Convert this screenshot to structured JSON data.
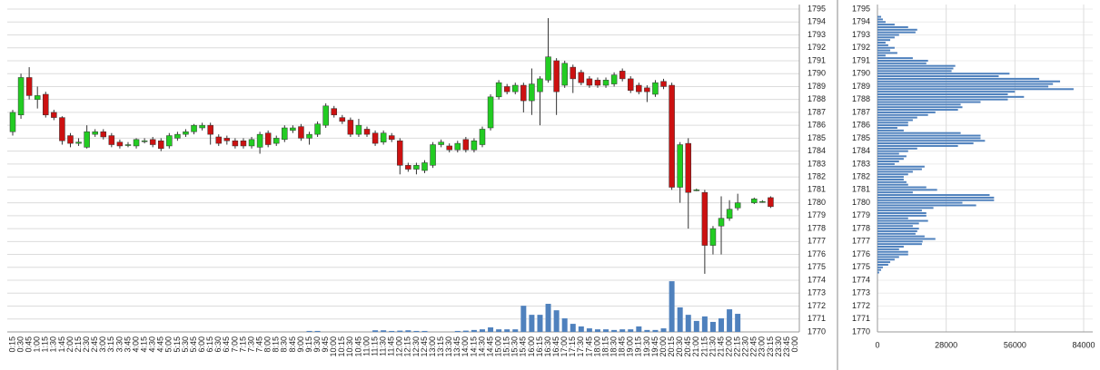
{
  "chart_data": [
    {
      "type": "candlestick",
      "categories": [
        "0:15",
        "0:30",
        "0:45",
        "1:00",
        "1:15",
        "1:30",
        "1:45",
        "2:00",
        "2:15",
        "2:30",
        "2:45",
        "3:00",
        "3:15",
        "3:30",
        "3:45",
        "4:00",
        "4:15",
        "4:30",
        "4:45",
        "5:00",
        "5:15",
        "5:30",
        "5:45",
        "6:00",
        "6:15",
        "6:30",
        "6:45",
        "7:00",
        "7:15",
        "7:30",
        "7:45",
        "8:00",
        "8:15",
        "8:30",
        "8:45",
        "9:00",
        "9:15",
        "9:30",
        "9:45",
        "10:00",
        "10:15",
        "10:30",
        "10:45",
        "11:00",
        "11:15",
        "11:30",
        "11:45",
        "12:00",
        "12:15",
        "12:30",
        "12:45",
        "13:00",
        "13:15",
        "13:30",
        "13:45",
        "14:00",
        "14:15",
        "14:30",
        "14:45",
        "15:00",
        "15:15",
        "15:30",
        "15:45",
        "16:00",
        "16:15",
        "16:30",
        "16:45",
        "17:00",
        "17:15",
        "17:30",
        "17:45",
        "18:00",
        "18:15",
        "18:30",
        "18:45",
        "19:00",
        "19:15",
        "19:30",
        "19:45",
        "20:00",
        "20:15",
        "20:30",
        "20:45",
        "21:00",
        "21:15",
        "21:30",
        "21:45",
        "22:00",
        "22:15",
        "22:30",
        "22:45",
        "23:00",
        "23:15",
        "23:30",
        "23:45",
        "0:00"
      ],
      "open": [
        1785.5,
        1786.8,
        1789.7,
        1788,
        1788.4,
        1787,
        1786.6,
        1785.2,
        1784.6,
        1784.3,
        1785.3,
        1785.5,
        1785.2,
        1784.7,
        1784.5,
        1784.4,
        1784.8,
        1784.9,
        1784.8,
        1784.4,
        1785,
        1785.3,
        1785.5,
        1785.8,
        1786,
        1785.1,
        1785,
        1784.8,
        1784.8,
        1784.4,
        1784.3,
        1785.4,
        1784.6,
        1784.9,
        1785.6,
        1785.9,
        1785,
        1785.3,
        1786,
        1787.3,
        1786.6,
        1786.4,
        1785.3,
        1785.7,
        1785.4,
        1784.7,
        1785.2,
        1784.8,
        1782.9,
        1782.6,
        1782.5,
        1782.9,
        1784.5,
        1784.4,
        1784.1,
        1784.9,
        1784.1,
        1784.5,
        1785.8,
        1788.2,
        1789,
        1788.6,
        1789.1,
        1787.9,
        1788.6,
        1789.5,
        1791,
        1789.1,
        1790.5,
        1790.1,
        1789.6,
        1789.5,
        1789.1,
        1789.2,
        1790.2,
        1789.6,
        1789.1,
        1788.9,
        1788.4,
        1789.4,
        1789.1,
        1781.2,
        1784.6,
        1781,
        1780.8,
        1776.7,
        1778.2,
        1778.8,
        1779.6,
        null,
        1780,
        1780.1,
        1780.4,
        null,
        null,
        null
      ],
      "high": [
        1787.2,
        1790,
        1790.5,
        1789,
        1788.6,
        1787.2,
        1786.7,
        1785.4,
        1785,
        1786,
        1785.7,
        1785.7,
        1785.4,
        1784.9,
        1784.7,
        1785,
        1785,
        1785.1,
        1785,
        1785.4,
        1785.5,
        1785.7,
        1786.1,
        1786.2,
        1786.2,
        1785.3,
        1785.2,
        1785,
        1785,
        1785.1,
        1785.5,
        1785.6,
        1785.2,
        1786,
        1786,
        1786.1,
        1785.5,
        1786.3,
        1787.7,
        1787.5,
        1786.8,
        1786.6,
        1786.5,
        1785.9,
        1785.6,
        1785.6,
        1785.4,
        1785,
        1783.1,
        1783.1,
        1783.3,
        1784.7,
        1784.9,
        1784.6,
        1784.8,
        1785.1,
        1785,
        1785.9,
        1788.4,
        1789.5,
        1789.2,
        1789.3,
        1789.3,
        1790.4,
        1789.8,
        1794.3,
        1791.2,
        1791,
        1790.7,
        1790.3,
        1789.8,
        1789.7,
        1789.7,
        1790.1,
        1790.4,
        1789.8,
        1789.3,
        1789.1,
        1789.5,
        1789.6,
        1789.3,
        1784.7,
        1785,
        1781.1,
        1781,
        1778.2,
        1780.5,
        1780.2,
        1780.7,
        null,
        1780.4,
        1780.2,
        1780.5,
        null,
        null,
        null
      ],
      "low": [
        1785.2,
        1786.5,
        1788,
        1787.3,
        1786.6,
        1786.4,
        1784.5,
        1784.3,
        1784.4,
        1784.2,
        1785.1,
        1784.9,
        1784.3,
        1784.2,
        1784.3,
        1784.2,
        1784.6,
        1784.3,
        1784,
        1784.2,
        1784.8,
        1785.1,
        1785.3,
        1785.6,
        1784.5,
        1784.4,
        1784.5,
        1784.2,
        1784.2,
        1784.2,
        1783.8,
        1784.3,
        1784.4,
        1784.7,
        1785.4,
        1784.8,
        1784.5,
        1785.1,
        1785.8,
        1786.6,
        1786.1,
        1785.1,
        1785.1,
        1785.1,
        1784.4,
        1784.5,
        1784.7,
        1782.2,
        1782.4,
        1782.2,
        1782.3,
        1782.7,
        1784.3,
        1783.9,
        1783.9,
        1783.9,
        1783.9,
        1784.3,
        1785.6,
        1788,
        1788.4,
        1788.4,
        1787,
        1786.8,
        1786,
        1789.3,
        1786.8,
        1788.9,
        1788.5,
        1789.1,
        1788.9,
        1788.9,
        1788.9,
        1789,
        1789.4,
        1788.5,
        1788.4,
        1787.8,
        1788.2,
        1788.8,
        1781,
        1780,
        1778,
        1780.9,
        1774.5,
        1776,
        1776,
        1778.6,
        1779.4,
        null,
        1779.9,
        1780,
        1779.6,
        null,
        null,
        null
      ],
      "close": [
        1787,
        1789.7,
        1788.3,
        1788.3,
        1786.8,
        1786.6,
        1784.8,
        1784.6,
        1784.7,
        1785.5,
        1785.5,
        1785.1,
        1784.5,
        1784.4,
        1784.5,
        1784.9,
        1784.8,
        1784.5,
        1784.2,
        1785.2,
        1785.3,
        1785.5,
        1786,
        1786,
        1785.3,
        1784.6,
        1784.8,
        1784.4,
        1784.4,
        1784.9,
        1785.3,
        1784.5,
        1785,
        1785.8,
        1785.8,
        1785,
        1785.3,
        1786.1,
        1787.5,
        1786.8,
        1786.3,
        1785.3,
        1786,
        1785.3,
        1784.6,
        1785.4,
        1784.9,
        1782.9,
        1782.6,
        1782.9,
        1783.1,
        1784.5,
        1784.7,
        1784.1,
        1784.6,
        1784.1,
        1784.8,
        1785.7,
        1788.2,
        1789.3,
        1788.6,
        1789.1,
        1787.9,
        1789.2,
        1789.6,
        1791.3,
        1788.6,
        1790.8,
        1789.6,
        1789.3,
        1789.1,
        1789.1,
        1789.5,
        1789.9,
        1789.6,
        1788.7,
        1788.6,
        1788.6,
        1789.3,
        1789,
        1781.2,
        1784.5,
        1780.8,
        1781,
        1776.7,
        1778,
        1778.8,
        1779.5,
        1780,
        null,
        1780.3,
        1780.1,
        1779.7,
        null,
        null,
        null
      ],
      "volume": [
        0,
        0,
        0,
        0,
        0,
        0,
        0,
        0,
        0,
        0,
        0,
        0,
        0,
        0,
        0,
        0,
        0,
        0,
        0,
        0,
        0,
        0,
        0,
        0,
        0,
        0,
        0,
        0,
        0,
        0,
        0,
        0,
        0,
        0,
        0,
        0,
        0.3,
        0.3,
        0,
        0,
        0,
        0,
        0,
        0,
        0.5,
        0.5,
        0.3,
        0.4,
        0.5,
        0.3,
        0.3,
        0,
        0,
        0,
        0.3,
        0.4,
        0.6,
        0.8,
        1.4,
        0.8,
        0.8,
        0.8,
        8.1,
        5.3,
        5.3,
        8.7,
        6.7,
        4.2,
        2.5,
        1.7,
        1.1,
        0.8,
        0.8,
        0.6,
        0.8,
        0.8,
        1.7,
        0.6,
        0.6,
        1.1,
        15.7,
        7.6,
        5.3,
        3.4,
        4.8,
        3.1,
        4.2,
        7,
        5.6,
        null,
        null,
        null,
        null,
        null,
        null,
        null
      ],
      "volume_lim": [
        0,
        100
      ],
      "up_color": "#22cc22",
      "down_color": "#cc1111",
      "volume_color": "#4f81bd",
      "ylim": [
        1770,
        1795
      ],
      "yticks": [
        1770,
        1771,
        1772,
        1773,
        1774,
        1775,
        1776,
        1777,
        1778,
        1779,
        1780,
        1781,
        1782,
        1783,
        1784,
        1785,
        1786,
        1787,
        1788,
        1789,
        1790,
        1791,
        1792,
        1793,
        1794,
        1795
      ],
      "grid": true
    },
    {
      "type": "hbar",
      "prices": [
        1794.4,
        1794.2,
        1794.0,
        1793.8,
        1793.6,
        1793.4,
        1793.2,
        1793.0,
        1792.8,
        1792.6,
        1792.4,
        1792.2,
        1792.0,
        1791.8,
        1791.6,
        1791.4,
        1791.2,
        1791.0,
        1790.8,
        1790.6,
        1790.4,
        1790.2,
        1790.0,
        1789.8,
        1789.6,
        1789.4,
        1789.2,
        1789.0,
        1788.8,
        1788.6,
        1788.4,
        1788.2,
        1788.0,
        1787.8,
        1787.6,
        1787.4,
        1787.2,
        1787.0,
        1786.8,
        1786.6,
        1786.4,
        1786.2,
        1786.0,
        1785.8,
        1785.6,
        1785.4,
        1785.2,
        1785.0,
        1784.8,
        1784.6,
        1784.4,
        1784.2,
        1784.0,
        1783.8,
        1783.6,
        1783.4,
        1783.2,
        1783.0,
        1782.8,
        1782.6,
        1782.4,
        1782.2,
        1782.0,
        1781.8,
        1781.6,
        1781.4,
        1781.2,
        1781.0,
        1780.8,
        1780.6,
        1780.4,
        1780.2,
        1780.0,
        1779.8,
        1779.6,
        1779.4,
        1779.2,
        1779.0,
        1778.8,
        1778.6,
        1778.4,
        1778.2,
        1778.0,
        1777.8,
        1777.6,
        1777.4,
        1777.2,
        1777.0,
        1776.8,
        1776.6,
        1776.4,
        1776.2,
        1776.0,
        1775.8,
        1775.6,
        1775.4,
        1775.2,
        1775.0,
        1774.8,
        1774.6
      ],
      "values": [
        1500,
        2200,
        3300,
        7000,
        12500,
        16200,
        15500,
        8800,
        7000,
        5200,
        3300,
        4400,
        7000,
        5200,
        8100,
        3300,
        14400,
        20600,
        19900,
        31700,
        30900,
        30200,
        53800,
        49400,
        65900,
        74400,
        71500,
        69600,
        79900,
        56000,
        53100,
        59700,
        53100,
        42000,
        33900,
        34600,
        32800,
        23600,
        20600,
        16200,
        14400,
        12500,
        12500,
        8100,
        10700,
        33900,
        42000,
        42000,
        43800,
        39100,
        32800,
        16200,
        12500,
        8800,
        11800,
        10700,
        8800,
        7000,
        19200,
        18100,
        14400,
        12500,
        10700,
        10700,
        11800,
        12500,
        19900,
        24300,
        14400,
        45700,
        47500,
        47500,
        34600,
        40200,
        22800,
        18100,
        19900,
        19900,
        12500,
        20600,
        16900,
        14400,
        16900,
        16200,
        15500,
        19200,
        23600,
        18400,
        18100,
        10700,
        8800,
        12500,
        12500,
        8800,
        7000,
        5200,
        4400,
        2200,
        1500,
        700
      ],
      "color": "#4f81bd",
      "xlim": [
        0,
        84000
      ],
      "xticks": [
        0,
        28000,
        56000,
        84000
      ],
      "ylim": [
        1770,
        1795
      ],
      "yticks": [
        1770,
        1771,
        1772,
        1773,
        1774,
        1775,
        1776,
        1777,
        1778,
        1779,
        1780,
        1781,
        1782,
        1783,
        1784,
        1785,
        1786,
        1787,
        1788,
        1789,
        1790,
        1791,
        1792,
        1793,
        1794,
        1795
      ],
      "grid": true
    }
  ]
}
